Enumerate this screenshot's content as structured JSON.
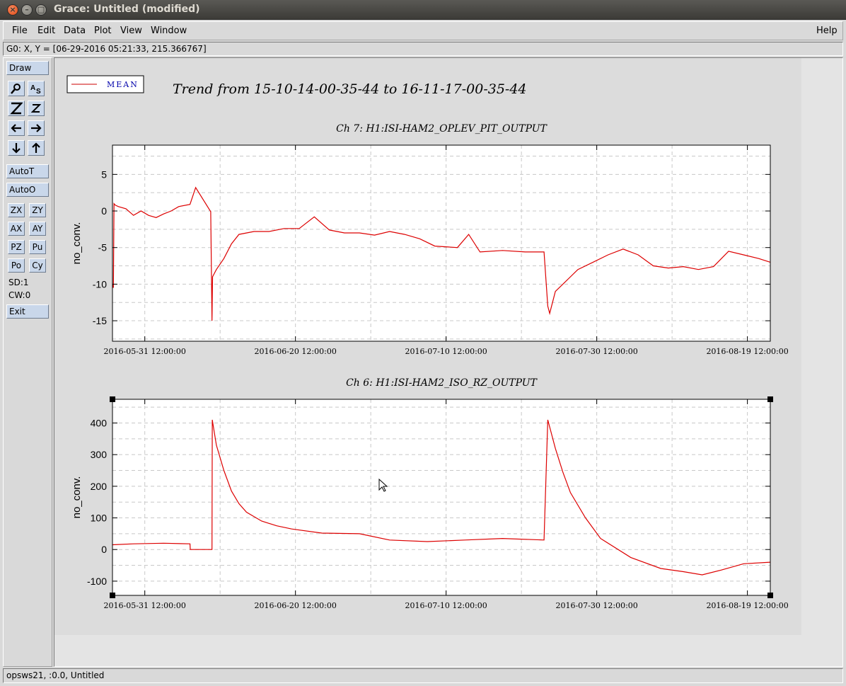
{
  "window": {
    "title": "Grace: Untitled (modified)",
    "close_glyph": "×",
    "min_glyph": "–",
    "max_glyph": "□"
  },
  "menu": {
    "left": [
      "File",
      "Edit",
      "Data",
      "Plot",
      "View",
      "Window"
    ],
    "help": "Help"
  },
  "locator": "G0: X, Y = [06-29-2016 05:21:33, 215.366767]",
  "toolbar": {
    "draw": "Draw",
    "autot": "AutoT",
    "autoo": "AutoO",
    "zx": "ZX",
    "zy": "ZY",
    "ax": "AX",
    "ay": "AY",
    "pz": "PZ",
    "pu": "Pu",
    "po": "Po",
    "cy": "Cy",
    "sd": "SD:1",
    "cw": "CW:0",
    "exit": "Exit",
    "icons": [
      "zoom-icon",
      "autoscale-text-icon",
      "zoom-in-icon",
      "zoom-out-icon",
      "arrow-left-icon",
      "arrow-right-icon",
      "arrow-down-icon",
      "arrow-up-icon"
    ]
  },
  "statusbar": "opsws21, :0.0, Untitled",
  "legend": {
    "label": "MEAN",
    "color": "#cc0000"
  },
  "main_title": "Trend from 15-10-14-00-35-44 to 16-11-17-00-35-44",
  "colors": {
    "line": "#dd0000",
    "canvas": "#e4e4e4",
    "plot_bg": "#ffffff",
    "grid": "#c8c8c8"
  },
  "chart_data": [
    {
      "type": "line",
      "title": "Ch 7: H1:ISI-HAM2_OPLEV_PIT_OUTPUT",
      "ylabel": "no_conv.",
      "xlabel": "",
      "xlim": [
        "2016-05-27 05:00",
        "2016-08-22 13:00"
      ],
      "ylim": [
        -17.8,
        9
      ],
      "yticks": [
        5,
        0,
        -5,
        -10,
        -15
      ],
      "xticks": [
        "2016-05-31 12:00:00",
        "2016-06-20 12:00:00",
        "2016-07-10 12:00:00",
        "2016-07-30 12:00:00",
        "2016-08-19 12:00:00"
      ],
      "grid": true,
      "series": [
        {
          "name": "MEAN",
          "x": [
            "2016-05-27 05:00",
            "2016-05-27 08:00",
            "2016-05-27 10:00",
            "2016-05-27 14:00",
            "2016-05-28 00:00",
            "2016-05-29 00:00",
            "2016-05-30 00:00",
            "2016-05-31 00:00",
            "2016-06-01 00:00",
            "2016-06-02 00:00",
            "2016-06-03 00:00",
            "2016-06-04 00:00",
            "2016-06-05 00:00",
            "2016-06-06 12:00",
            "2016-06-07 06:00",
            "2016-06-09 06:00",
            "2016-06-09 10:00",
            "2016-06-09 12:00",
            "2016-06-10 00:00",
            "2016-06-11 00:00",
            "2016-06-12 00:00",
            "2016-06-13 00:00",
            "2016-06-15 00:00",
            "2016-06-17 00:00",
            "2016-06-19 00:00",
            "2016-06-21 00:00",
            "2016-06-23 00:00",
            "2016-06-25 00:00",
            "2016-06-27 00:00",
            "2016-06-29 00:00",
            "2016-07-01 00:00",
            "2016-07-03 00:00",
            "2016-07-05 00:00",
            "2016-07-07 00:00",
            "2016-07-09 00:00",
            "2016-07-12 00:00",
            "2016-07-13 12:00",
            "2016-07-15 00:00",
            "2016-07-18 00:00",
            "2016-07-21 00:00",
            "2016-07-23 12:00",
            "2016-07-24 00:00",
            "2016-07-24 06:00",
            "2016-07-25 00:00",
            "2016-07-26 00:00",
            "2016-07-27 00:00",
            "2016-07-28 00:00",
            "2016-07-30 00:00",
            "2016-08-01 00:00",
            "2016-08-03 00:00",
            "2016-08-05 00:00",
            "2016-08-07 00:00",
            "2016-08-09 00:00",
            "2016-08-11 00:00",
            "2016-08-13 00:00",
            "2016-08-15 00:00",
            "2016-08-17 00:00",
            "2016-08-19 00:00",
            "2016-08-21 00:00",
            "2016-08-22 13:00"
          ],
          "y": [
            -10.0,
            -10.5,
            1.0,
            0.8,
            0.6,
            0.3,
            -0.6,
            0.0,
            -0.6,
            -0.9,
            -0.4,
            0.0,
            0.6,
            0.9,
            3.2,
            -0.1,
            -15.0,
            -9.0,
            -8.0,
            -6.5,
            -4.5,
            -3.2,
            -2.8,
            -2.8,
            -2.4,
            -2.4,
            -0.8,
            -2.6,
            -3.0,
            -3.0,
            -3.3,
            -2.8,
            -3.2,
            -3.8,
            -4.8,
            -5.0,
            -3.2,
            -5.6,
            -5.4,
            -5.6,
            -5.6,
            -13.0,
            -14.0,
            -11.0,
            -10.0,
            -9.0,
            -8.0,
            -7.0,
            -6.0,
            -5.2,
            -6.0,
            -7.5,
            -7.8,
            -7.6,
            -8.0,
            -7.6,
            -5.5,
            -6.0,
            -6.5,
            -7.0
          ]
        }
      ]
    },
    {
      "type": "line",
      "title": "Ch 6: H1:ISI-HAM2_ISO_RZ_OUTPUT",
      "ylabel": "no_conv.",
      "xlabel": "",
      "xlim": [
        "2016-05-27 05:00",
        "2016-08-22 13:00"
      ],
      "ylim": [
        -145,
        475
      ],
      "yticks": [
        400,
        300,
        200,
        100,
        0,
        -100
      ],
      "xticks": [
        "2016-05-31 12:00:00",
        "2016-06-20 12:00:00",
        "2016-07-10 12:00:00",
        "2016-07-30 12:00:00",
        "2016-08-19 12:00:00"
      ],
      "grid": true,
      "series": [
        {
          "name": "MEAN",
          "x": [
            "2016-05-27 05:00",
            "2016-05-30 00:00",
            "2016-06-03 00:00",
            "2016-06-06 12:00",
            "2016-06-06 13:00",
            "2016-06-09 10:00",
            "2016-06-09 11:00",
            "2016-06-10 00:00",
            "2016-06-11 00:00",
            "2016-06-12 00:00",
            "2016-06-13 00:00",
            "2016-06-14 00:00",
            "2016-06-16 00:00",
            "2016-06-18 00:00",
            "2016-06-20 00:00",
            "2016-06-24 00:00",
            "2016-06-29 00:00",
            "2016-07-03 00:00",
            "2016-07-08 00:00",
            "2016-07-13 00:00",
            "2016-07-18 00:00",
            "2016-07-23 12:00",
            "2016-07-24 00:00",
            "2016-07-25 00:00",
            "2016-07-26 00:00",
            "2016-07-27 00:00",
            "2016-07-29 00:00",
            "2016-07-31 00:00",
            "2016-08-04 00:00",
            "2016-08-08 00:00",
            "2016-08-11 00:00",
            "2016-08-13 12:00",
            "2016-08-16 00:00",
            "2016-08-19 00:00",
            "2016-08-22 13:00"
          ],
          "y": [
            15,
            18,
            20,
            18,
            0,
            0,
            410,
            330,
            250,
            185,
            145,
            118,
            90,
            75,
            65,
            52,
            50,
            30,
            25,
            30,
            35,
            30,
            410,
            320,
            245,
            180,
            100,
            35,
            -25,
            -60,
            -70,
            -80,
            -65,
            -45,
            -40
          ]
        }
      ]
    }
  ]
}
